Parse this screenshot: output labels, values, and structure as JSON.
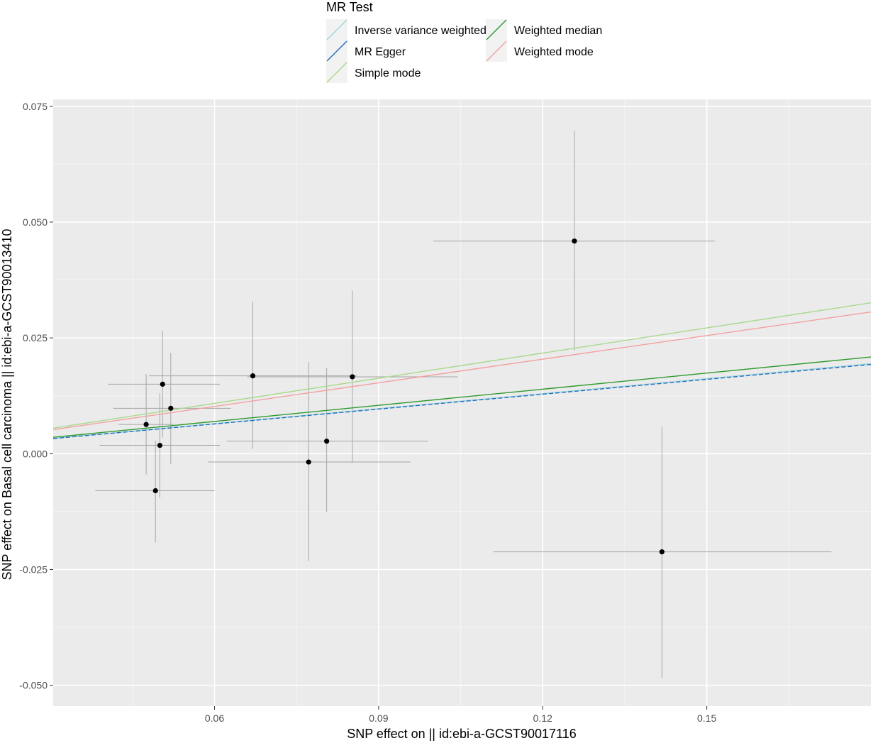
{
  "chart_data": {
    "type": "scatter",
    "xlabel": "SNP effect on  || id:ebi-a-GCST90017116",
    "ylabel": "SNP effect on Basal cell carcinoma || id:ebi-a-GCST90013410",
    "xlim": [
      0.0305,
      0.18
    ],
    "ylim": [
      -0.0545,
      0.0765
    ],
    "x_ticks": [
      0.06,
      0.09,
      0.12,
      0.15
    ],
    "x_tick_labels": [
      "0.06",
      "0.09",
      "0.12",
      "0.15"
    ],
    "y_ticks": [
      -0.05,
      -0.025,
      0.0,
      0.025,
      0.05,
      0.075
    ],
    "y_tick_labels": [
      "-0.050",
      "-0.025",
      "0.000",
      "0.025",
      "0.050",
      "0.075"
    ],
    "grid": true,
    "legend": {
      "title": "MR Test",
      "position": "top",
      "entries": [
        {
          "label": "Inverse variance weighted",
          "color": "#9ed5d8"
        },
        {
          "label": "MR Egger",
          "color": "#1f6fc4"
        },
        {
          "label": "Simple mode",
          "color": "#a9d98a"
        },
        {
          "label": "Weighted median",
          "color": "#2e9a2e"
        },
        {
          "label": "Weighted mode",
          "color": "#f4a0a0"
        }
      ]
    },
    "points": [
      {
        "x": 0.0475,
        "y": 0.0063,
        "xmin": 0.0425,
        "xmax": 0.0525,
        "ymin": -0.0045,
        "ymax": 0.0172
      },
      {
        "x": 0.0505,
        "y": 0.015,
        "xmin": 0.0405,
        "xmax": 0.061,
        "ymin": 0.0035,
        "ymax": 0.0265
      },
      {
        "x": 0.052,
        "y": 0.0098,
        "xmin": 0.0415,
        "xmax": 0.063,
        "ymin": -0.0022,
        "ymax": 0.0218
      },
      {
        "x": 0.05,
        "y": 0.0018,
        "xmin": 0.039,
        "xmax": 0.061,
        "ymin": -0.0095,
        "ymax": 0.013
      },
      {
        "x": 0.0492,
        "y": -0.008,
        "xmin": 0.0382,
        "xmax": 0.06,
        "ymin": -0.0192,
        "ymax": 0.0028
      },
      {
        "x": 0.067,
        "y": 0.0168,
        "xmin": 0.048,
        "xmax": 0.086,
        "ymin": 0.001,
        "ymax": 0.0328
      },
      {
        "x": 0.0772,
        "y": -0.0018,
        "xmin": 0.0588,
        "xmax": 0.0958,
        "ymin": -0.0232,
        "ymax": 0.0198
      },
      {
        "x": 0.0805,
        "y": 0.0027,
        "xmin": 0.0622,
        "xmax": 0.099,
        "ymin": -0.0126,
        "ymax": 0.0185
      },
      {
        "x": 0.0852,
        "y": 0.0166,
        "xmin": 0.066,
        "xmax": 0.1045,
        "ymin": -0.002,
        "ymax": 0.0352
      },
      {
        "x": 0.1258,
        "y": 0.0459,
        "xmin": 0.1,
        "xmax": 0.1515,
        "ymin": 0.0222,
        "ymax": 0.0697
      },
      {
        "x": 0.1418,
        "y": -0.0212,
        "xmin": 0.111,
        "xmax": 0.1728,
        "ymin": -0.0485,
        "ymax": 0.0058
      }
    ],
    "lines": [
      {
        "name": "Inverse variance weighted",
        "intercept": 0.0,
        "slope": 0.108,
        "color": "#9ed5d8",
        "dashed": false
      },
      {
        "name": "MR Egger",
        "intercept": 0.0,
        "slope": 0.107,
        "color": "#1f6fc4",
        "dashed": true
      },
      {
        "name": "Simple mode",
        "intercept": 0.0,
        "slope": 0.181,
        "color": "#a9d98a",
        "dashed": false
      },
      {
        "name": "Weighted median",
        "intercept": 0.0,
        "slope": 0.116,
        "color": "#2e9a2e",
        "dashed": false
      },
      {
        "name": "Weighted mode",
        "intercept": 0.0,
        "slope": 0.17,
        "color": "#f4a0a0",
        "dashed": false
      }
    ]
  }
}
